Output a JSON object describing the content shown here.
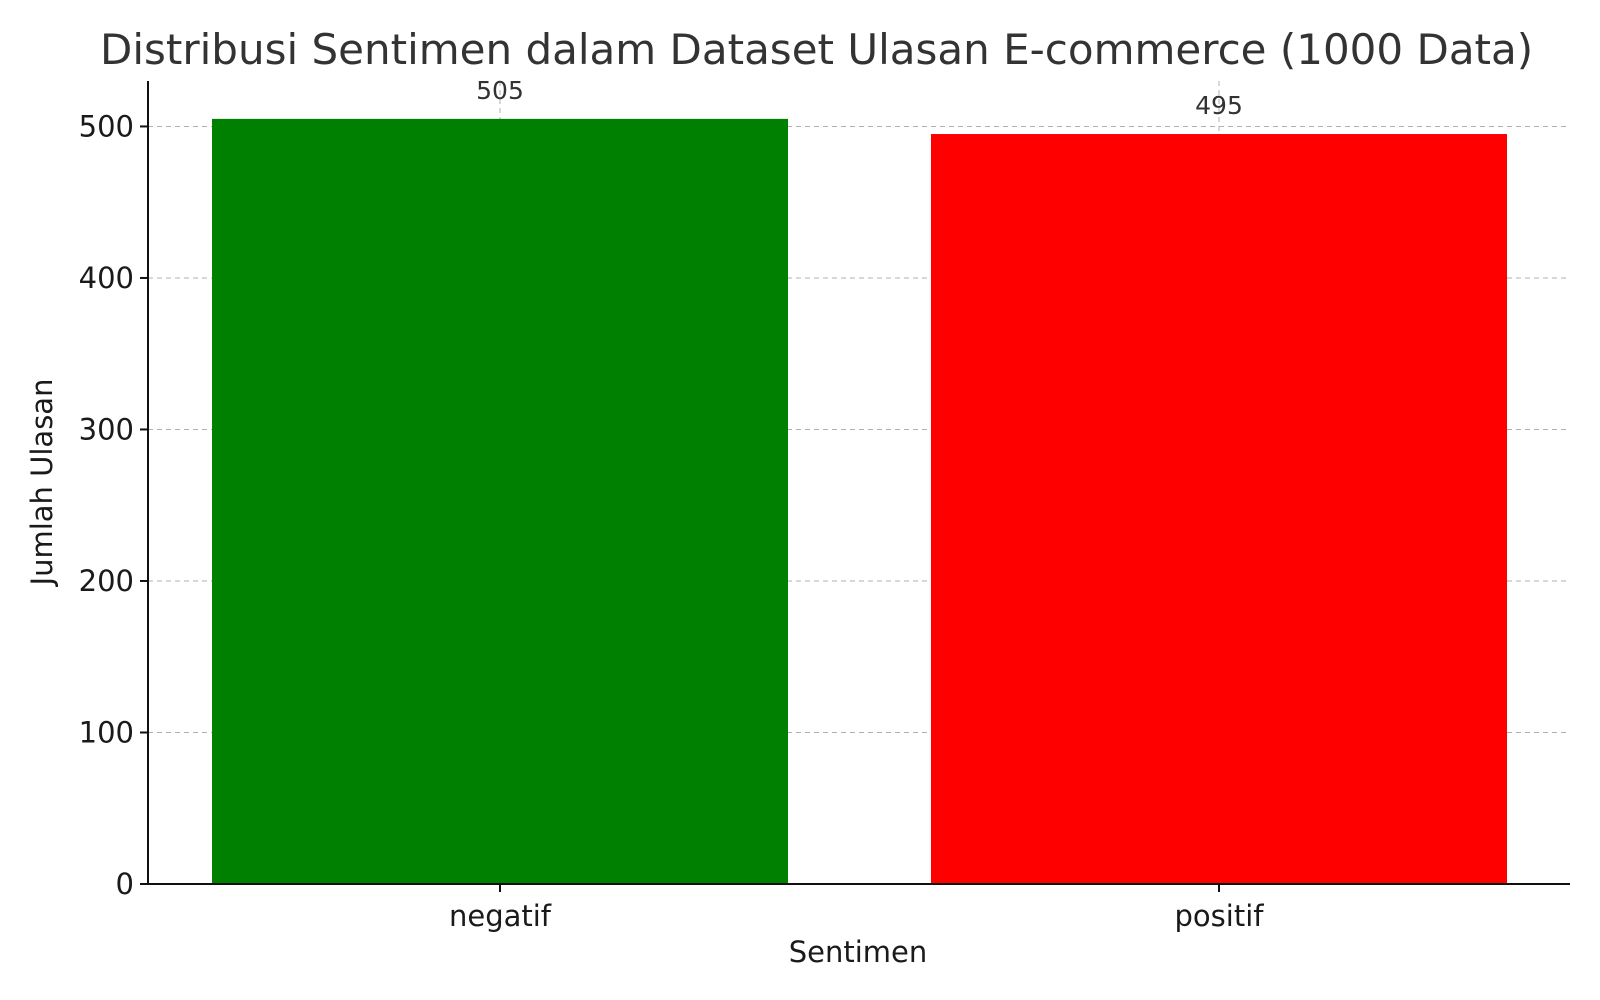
{
  "chart_data": {
    "type": "bar",
    "title": "Distribusi Sentimen dalam Dataset Ulasan E-commerce (1000 Data)",
    "xlabel": "Sentimen",
    "ylabel": "Jumlah Ulasan",
    "categories": [
      "negatif",
      "positif"
    ],
    "values": [
      505,
      495
    ],
    "value_labels": [
      "505",
      "495"
    ],
    "colors": [
      "#008000",
      "#ff0000"
    ],
    "ylim": [
      0,
      530
    ],
    "yticks": [
      0,
      100,
      200,
      300,
      400,
      500
    ],
    "ytick_labels": [
      "0",
      "100",
      "200",
      "300",
      "400",
      "500"
    ],
    "grid": true,
    "legend": "none"
  }
}
